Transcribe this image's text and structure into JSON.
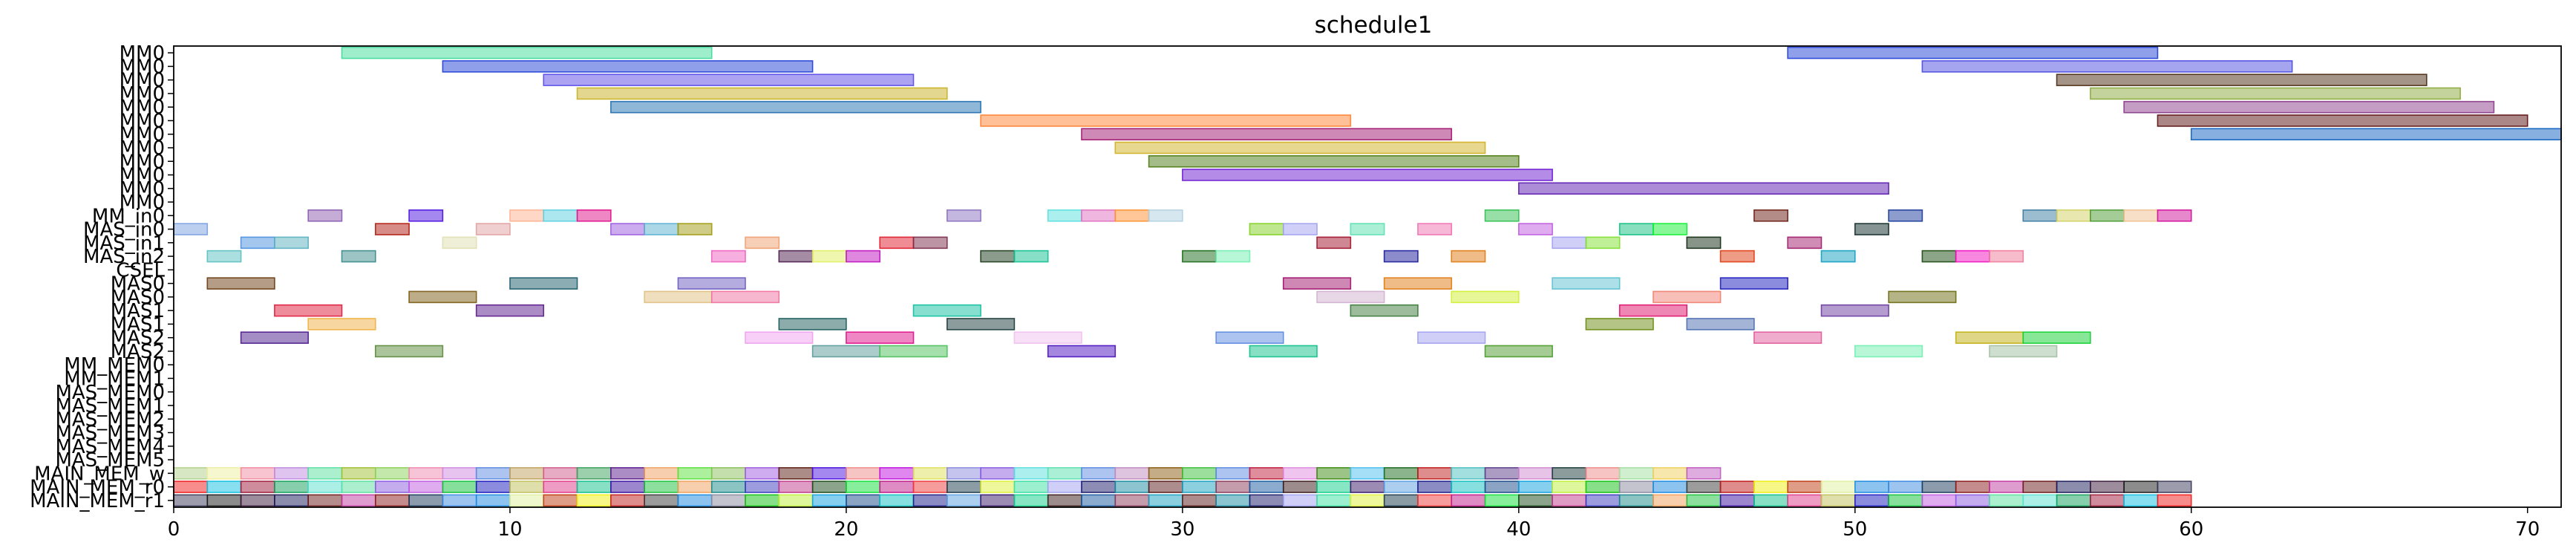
{
  "chart_data": {
    "type": "gantt",
    "title": "schedule1",
    "xlabel": "",
    "ylabel": "",
    "xlim": [
      0,
      71
    ],
    "x_ticks": [
      0,
      10,
      20,
      30,
      40,
      50,
      60,
      70
    ],
    "grid": false,
    "rows": [
      "MM0",
      "MM0",
      "MM0",
      "MM0",
      "MM0",
      "MM0",
      "MM0",
      "MM0",
      "MM0",
      "MM0",
      "MM0",
      "MM0",
      "MM_in0",
      "MAS_in0",
      "MAS_in1",
      "MAS_in2",
      "CSEL",
      "MAS0",
      "MAS0",
      "MAS1",
      "MAS1",
      "MAS2",
      "MAS2",
      "MM_MEM0",
      "MM_MEM1",
      "MAS_MEM0",
      "MAS_MEM1",
      "MAS_MEM2",
      "MAS_MEM3",
      "MAS_MEM4",
      "MAS_MEM5",
      "MAIN_MEM_w",
      "MAIN_MEM_r0",
      "MAIN_MEM_r1"
    ],
    "palette": [
      "#4f7ae0",
      "#e0a13b",
      "#3bb07a",
      "#c9456e",
      "#7d52c7",
      "#d6c94a",
      "#e07a5a",
      "#4fb0c9",
      "#8a6d3b",
      "#6a9a4f",
      "#e05ab8",
      "#5a5ae0",
      "#b0b0b0",
      "#3b8a8a",
      "#e0b0b0",
      "#a0e05a"
    ],
    "tasks": [
      {
        "row": 0,
        "start": 5,
        "end": 16,
        "color": "#3ddc97"
      },
      {
        "row": 0,
        "start": 48,
        "end": 59,
        "color": "#1f3fd6"
      },
      {
        "row": 1,
        "start": 8,
        "end": 19,
        "color": "#1f3fd6"
      },
      {
        "row": 1,
        "start": 52,
        "end": 63,
        "color": "#4a4ae0"
      },
      {
        "row": 2,
        "start": 11,
        "end": 22,
        "color": "#5a4ae8"
      },
      {
        "row": 2,
        "start": 56,
        "end": 67,
        "color": "#4a2a10"
      },
      {
        "row": 3,
        "start": 12,
        "end": 23,
        "color": "#c8b020"
      },
      {
        "row": 3,
        "start": 57,
        "end": 68,
        "color": "#8aa838"
      },
      {
        "row": 4,
        "start": 13,
        "end": 24,
        "color": "#1f6fb0"
      },
      {
        "row": 4,
        "start": 58,
        "end": 69,
        "color": "#8a3a8a"
      },
      {
        "row": 5,
        "start": 24,
        "end": 35,
        "color": "#ff8030"
      },
      {
        "row": 5,
        "start": 59,
        "end": 70,
        "color": "#5a1010"
      },
      {
        "row": 6,
        "start": 27,
        "end": 38,
        "color": "#a0146e"
      },
      {
        "row": 6,
        "start": 60,
        "end": 71,
        "color": "#1060c0"
      },
      {
        "row": 7,
        "start": 28,
        "end": 39,
        "color": "#d0b020"
      },
      {
        "row": 8,
        "start": 29,
        "end": 40,
        "color": "#4a7a10"
      },
      {
        "row": 9,
        "start": 30,
        "end": 41,
        "color": "#6a1ad0"
      },
      {
        "row": 10,
        "start": 40,
        "end": 51,
        "color": "#5a1ab0"
      },
      {
        "row": 12,
        "start": 4,
        "end": 5,
        "color": "#8a5ab0"
      },
      {
        "row": 12,
        "start": 7,
        "end": 8,
        "color": "#4a10e0"
      },
      {
        "row": 12,
        "start": 10,
        "end": 11,
        "color": "#ffb090"
      },
      {
        "row": 12,
        "start": 11,
        "end": 12,
        "color": "#5ad0e0"
      },
      {
        "row": 12,
        "start": 12,
        "end": 13,
        "color": "#e0108a"
      },
      {
        "row": 12,
        "start": 23,
        "end": 24,
        "color": "#8a70c0"
      },
      {
        "row": 12,
        "start": 26,
        "end": 27,
        "color": "#5ae0e0"
      },
      {
        "row": 12,
        "start": 27,
        "end": 28,
        "color": "#e070c0"
      },
      {
        "row": 12,
        "start": 28,
        "end": 29,
        "color": "#ff9030"
      },
      {
        "row": 12,
        "start": 29,
        "end": 30,
        "color": "#b0d0e0"
      },
      {
        "row": 12,
        "start": 39,
        "end": 40,
        "color": "#30c050"
      },
      {
        "row": 12,
        "start": 47,
        "end": 48,
        "color": "#6a1a10"
      },
      {
        "row": 12,
        "start": 51,
        "end": 52,
        "color": "#1a3a9a"
      },
      {
        "row": 12,
        "start": 55,
        "end": 56,
        "color": "#3a7aa0"
      },
      {
        "row": 12,
        "start": 56,
        "end": 57,
        "color": "#d0d060"
      },
      {
        "row": 12,
        "start": 57,
        "end": 58,
        "color": "#4a9a30"
      },
      {
        "row": 12,
        "start": 58,
        "end": 59,
        "color": "#f0c090"
      },
      {
        "row": 12,
        "start": 59,
        "end": 60,
        "color": "#d0109a"
      },
      {
        "row": 13,
        "start": 0,
        "end": 1,
        "color": "#7aa0e0"
      },
      {
        "row": 13,
        "start": 6,
        "end": 7,
        "color": "#b01a10"
      },
      {
        "row": 13,
        "start": 9,
        "end": 10,
        "color": "#e0a0a0"
      },
      {
        "row": 13,
        "start": 13,
        "end": 14,
        "color": "#9a5ae0"
      },
      {
        "row": 13,
        "start": 14,
        "end": 15,
        "color": "#5ab0d0"
      },
      {
        "row": 13,
        "start": 15,
        "end": 16,
        "color": "#a09a10"
      },
      {
        "row": 13,
        "start": 32,
        "end": 33,
        "color": "#80d020"
      },
      {
        "row": 13,
        "start": 33,
        "end": 34,
        "color": "#a0a0f0"
      },
      {
        "row": 13,
        "start": 35,
        "end": 36,
        "color": "#5ae0b0"
      },
      {
        "row": 13,
        "start": 37,
        "end": 38,
        "color": "#f070b0"
      },
      {
        "row": 13,
        "start": 40,
        "end": 41,
        "color": "#c05ae0"
      },
      {
        "row": 13,
        "start": 43,
        "end": 44,
        "color": "#10c080"
      },
      {
        "row": 13,
        "start": 44,
        "end": 45,
        "color": "#10f030"
      },
      {
        "row": 13,
        "start": 50,
        "end": 51,
        "color": "#102a2a"
      },
      {
        "row": 14,
        "start": 2,
        "end": 3,
        "color": "#4a90e0"
      },
      {
        "row": 14,
        "start": 3,
        "end": 4,
        "color": "#5ab0c0"
      },
      {
        "row": 14,
        "start": 8,
        "end": 9,
        "color": "#e0e0b0"
      },
      {
        "row": 14,
        "start": 17,
        "end": 18,
        "color": "#f0a070"
      },
      {
        "row": 14,
        "start": 21,
        "end": 22,
        "color": "#e01a2a"
      },
      {
        "row": 14,
        "start": 22,
        "end": 23,
        "color": "#7a2a4a"
      },
      {
        "row": 14,
        "start": 34,
        "end": 35,
        "color": "#a0102a"
      },
      {
        "row": 14,
        "start": 41,
        "end": 42,
        "color": "#a0a0f0"
      },
      {
        "row": 14,
        "start": 42,
        "end": 43,
        "color": "#80e030"
      },
      {
        "row": 14,
        "start": 45,
        "end": 46,
        "color": "#102a10"
      },
      {
        "row": 14,
        "start": 48,
        "end": 49,
        "color": "#a01a6a"
      },
      {
        "row": 15,
        "start": 1,
        "end": 2,
        "color": "#5ac0c0"
      },
      {
        "row": 15,
        "start": 5,
        "end": 6,
        "color": "#3a8a8a"
      },
      {
        "row": 15,
        "start": 16,
        "end": 17,
        "color": "#f060c0"
      },
      {
        "row": 15,
        "start": 18,
        "end": 19,
        "color": "#4a1a4a"
      },
      {
        "row": 15,
        "start": 19,
        "end": 20,
        "color": "#e0f060"
      },
      {
        "row": 15,
        "start": 20,
        "end": 21,
        "color": "#c010c0"
      },
      {
        "row": 15,
        "start": 24,
        "end": 25,
        "color": "#1a3a1a"
      },
      {
        "row": 15,
        "start": 25,
        "end": 26,
        "color": "#10c090"
      },
      {
        "row": 15,
        "start": 30,
        "end": 31,
        "color": "#1a6a1a"
      },
      {
        "row": 15,
        "start": 31,
        "end": 32,
        "color": "#70f0b0"
      },
      {
        "row": 15,
        "start": 36,
        "end": 37,
        "color": "#1a1a9a"
      },
      {
        "row": 15,
        "start": 38,
        "end": 39,
        "color": "#e07a10"
      },
      {
        "row": 15,
        "start": 46,
        "end": 47,
        "color": "#e03a10"
      },
      {
        "row": 15,
        "start": 49,
        "end": 50,
        "color": "#10a0c0"
      },
      {
        "row": 15,
        "start": 52,
        "end": 53,
        "color": "#1a4a10"
      },
      {
        "row": 15,
        "start": 53,
        "end": 54,
        "color": "#f010c0"
      },
      {
        "row": 15,
        "start": 54,
        "end": 55,
        "color": "#f07a9a"
      },
      {
        "row": 17,
        "start": 1,
        "end": 3,
        "color": "#6a3a10"
      },
      {
        "row": 17,
        "start": 10,
        "end": 12,
        "color": "#1a5a6a"
      },
      {
        "row": 17,
        "start": 15,
        "end": 17,
        "color": "#6a5ac0"
      },
      {
        "row": 17,
        "start": 33,
        "end": 35,
        "color": "#a0106a"
      },
      {
        "row": 17,
        "start": 36,
        "end": 38,
        "color": "#e07a10"
      },
      {
        "row": 17,
        "start": 41,
        "end": 43,
        "color": "#5ac0d0"
      },
      {
        "row": 17,
        "start": 46,
        "end": 48,
        "color": "#1a1ac0"
      },
      {
        "row": 18,
        "start": 7,
        "end": 9,
        "color": "#7a5a10"
      },
      {
        "row": 18,
        "start": 14,
        "end": 16,
        "color": "#e0c080"
      },
      {
        "row": 18,
        "start": 16,
        "end": 18,
        "color": "#f070a0"
      },
      {
        "row": 18,
        "start": 34,
        "end": 36,
        "color": "#d0b0d0"
      },
      {
        "row": 18,
        "start": 38,
        "end": 40,
        "color": "#d0f030"
      },
      {
        "row": 18,
        "start": 44,
        "end": 46,
        "color": "#f08070"
      },
      {
        "row": 18,
        "start": 51,
        "end": 53,
        "color": "#6a6a10"
      },
      {
        "row": 19,
        "start": 3,
        "end": 5,
        "color": "#e01a3a"
      },
      {
        "row": 19,
        "start": 9,
        "end": 11,
        "color": "#5a1a8a"
      },
      {
        "row": 19,
        "start": 22,
        "end": 24,
        "color": "#10c0a0"
      },
      {
        "row": 19,
        "start": 35,
        "end": 37,
        "color": "#3a7a3a"
      },
      {
        "row": 19,
        "start": 43,
        "end": 45,
        "color": "#e0106a"
      },
      {
        "row": 19,
        "start": 49,
        "end": 51,
        "color": "#6a3aa0"
      },
      {
        "row": 20,
        "start": 4,
        "end": 6,
        "color": "#f0b040"
      },
      {
        "row": 20,
        "start": 18,
        "end": 20,
        "color": "#1a5a5a"
      },
      {
        "row": 20,
        "start": 23,
        "end": 25,
        "color": "#1a3a3a"
      },
      {
        "row": 20,
        "start": 42,
        "end": 44,
        "color": "#6a8a10"
      },
      {
        "row": 20,
        "start": 45,
        "end": 47,
        "color": "#4a6ab0"
      },
      {
        "row": 21,
        "start": 2,
        "end": 4,
        "color": "#4a1a8a"
      },
      {
        "row": 21,
        "start": 17,
        "end": 19,
        "color": "#f0a0f0"
      },
      {
        "row": 21,
        "start": 20,
        "end": 22,
        "color": "#e0108a"
      },
      {
        "row": 21,
        "start": 25,
        "end": 27,
        "color": "#f0c0f0"
      },
      {
        "row": 21,
        "start": 31,
        "end": 33,
        "color": "#5a8ae0"
      },
      {
        "row": 21,
        "start": 37,
        "end": 39,
        "color": "#a0a0f0"
      },
      {
        "row": 21,
        "start": 47,
        "end": 49,
        "color": "#e05a9a"
      },
      {
        "row": 21,
        "start": 53,
        "end": 55,
        "color": "#c0b010"
      },
      {
        "row": 21,
        "start": 55,
        "end": 57,
        "color": "#10d030"
      },
      {
        "row": 22,
        "start": 6,
        "end": 8,
        "color": "#5a8a3a"
      },
      {
        "row": 22,
        "start": 19,
        "end": 21,
        "color": "#5a9a9a"
      },
      {
        "row": 22,
        "start": 21,
        "end": 23,
        "color": "#4ac05a"
      },
      {
        "row": 22,
        "start": 26,
        "end": 28,
        "color": "#4a10c0"
      },
      {
        "row": 22,
        "start": 32,
        "end": 34,
        "color": "#10c08a"
      },
      {
        "row": 22,
        "start": 39,
        "end": 41,
        "color": "#4a9a2a"
      },
      {
        "row": 22,
        "start": 50,
        "end": 52,
        "color": "#70f0b0"
      },
      {
        "row": 22,
        "start": 54,
        "end": 56,
        "color": "#a0c0a0"
      }
    ],
    "mem_w_colors": [
      "#b0d08a",
      "#f0f0a0",
      "#f08aa0",
      "#c08ae0",
      "#5ae0a0",
      "#a0c030",
      "#8ad05a",
      "#f08ab0",
      "#d08ae0",
      "#5a8ae0",
      "#c0a05a",
      "#d05a8a",
      "#3aa05a",
      "#5a1a8a",
      "#f0a060",
      "#5ae03a",
      "#8ac05a",
      "#a05ae0",
      "#5a1a10",
      "#4a10e0",
      "#f08a8a",
      "#c010e0",
      "#e0e05a",
      "#8a8ae0",
      "#8a5ae0",
      "#5ae0e0",
      "#5ae0b0",
      "#5a8ae0",
      "#c08ac0",
      "#8a5a10",
      "#3ac03a",
      "#5a8ae0",
      "#c01a3a",
      "#e08ae0",
      "#3a8a10",
      "#4ac0f0",
      "#1a6a1a",
      "#c01a1a",
      "#4ac0c0",
      "#5a3a8a",
      "#d08ad0",
      "#1a3a3a",
      "#f08a8a",
      "#a0e0a0",
      "#f0d05a",
      "#c05ac0"
    ],
    "mem_r0_colors": [
      "#f01a1a",
      "#10c0e0",
      "#a01a3a",
      "#10a05a",
      "#5ae0d0",
      "#5ae0a0",
      "#8a5ae0",
      "#c05ae0",
      "#10c03a",
      "#1a1ac0",
      "#c0c05a",
      "#e03a8a",
      "#10c08a",
      "#3a10a0",
      "#1ac03a",
      "#f0a05a",
      "#1a8a8a",
      "#3a3ac0",
      "#c03a8a",
      "#1a4a1a",
      "#10e03a",
      "#c01a8a",
      "#f03a3a",
      "#1a3a4a",
      "#e0f03a",
      "#3ae0a0",
      "#a0a0f0",
      "#1a1a6a",
      "#1a8aa0",
      "#5a1a1a",
      "#1aa0c0",
      "#8a3a5a",
      "#1a5aa0",
      "#3a1a1a",
      "#10d08a",
      "#3a1a6a",
      "#5aa0e0",
      "#1a1a8a",
      "#10c0c0",
      "#1a4a8a",
      "#10a0e0",
      "#c0f03a",
      "#10c010",
      "#8a8aa0",
      "#1a8ae0",
      "#3a3a3a",
      "#c01a1a",
      "#f0f010",
      "#c03a10",
      "#e0f0a0",
      "#1a8ae0",
      "#3a8ae0",
      "#1a3a5a",
      "#8a1a1a",
      "#c03aa0",
      "#6a1a1a",
      "#1a1a5a",
      "#3a1a3a",
      "#1a1a1a",
      "#3a3a5a"
    ]
  }
}
